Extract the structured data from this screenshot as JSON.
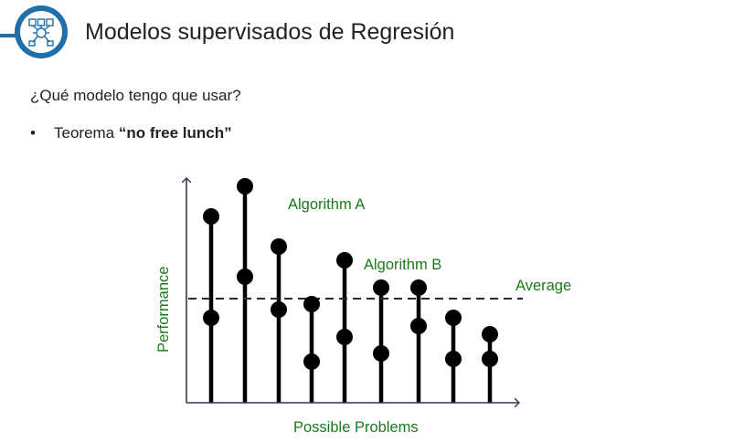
{
  "slide": {
    "title": "Modelos supervisados de Regresión",
    "question": "¿Qué modelo tengo que usar?",
    "bullet": {
      "marker": "•",
      "prefix": "Teorema ",
      "bold": "“no free lunch”"
    }
  },
  "logo": {
    "icon": "brain-network-icon",
    "color": "#1f6fa8"
  },
  "diagram": {
    "labels": {
      "algorithm_a": "Algorithm A",
      "algorithm_b": "Algorithm B",
      "average": "Average",
      "x_axis": "Possible Problems",
      "y_axis": "Performance"
    },
    "colors": {
      "label": "#1a7a1a",
      "marks": "#000000"
    }
  },
  "chart_data": {
    "type": "scatter",
    "xlabel": "Possible Problems",
    "ylabel": "Performance",
    "grid": false,
    "series": [
      {
        "name": "Algorithm A",
        "values": [
          6.8,
          7.9,
          5.7,
          3.6,
          5.2,
          4.2,
          4.2,
          3.1,
          2.5
        ]
      },
      {
        "name": "Algorithm B",
        "values": [
          3.1,
          4.6,
          3.4,
          1.5,
          2.4,
          1.8,
          2.8,
          1.6,
          1.6
        ]
      }
    ],
    "average": 3.8,
    "ylim": [
      0,
      9
    ]
  }
}
